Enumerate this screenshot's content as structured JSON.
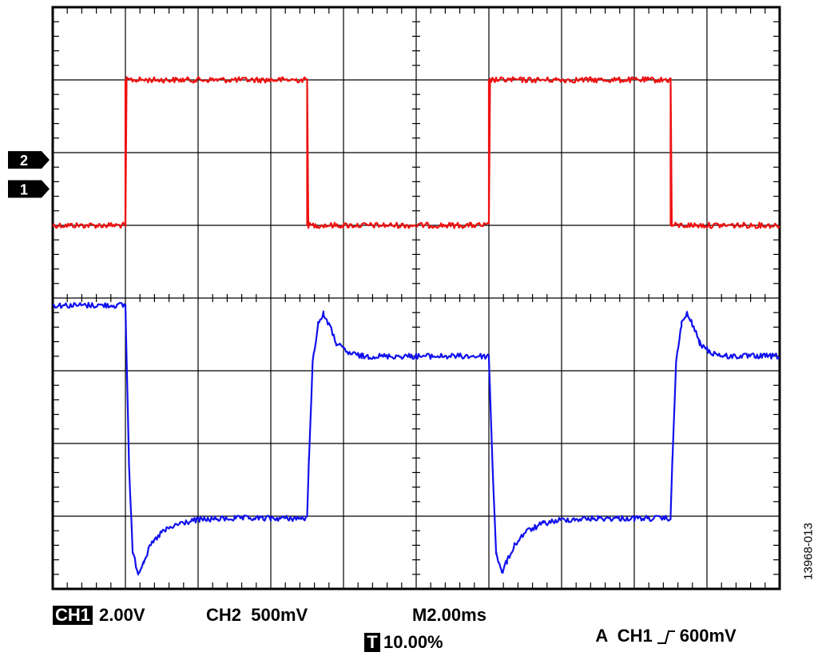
{
  "chart_data": {
    "type": "line",
    "title": "",
    "xlabel": "",
    "ylabel": "",
    "grid": true,
    "x_unit": "ms",
    "y_unit": "divisions",
    "xlim": [
      0,
      20
    ],
    "ylim": [
      -4,
      4
    ],
    "x_divisions": 10,
    "y_divisions": 8,
    "series": [
      {
        "color": "#ee1111",
        "marker_label": "1",
        "marker_level": 1.5,
        "x": [
          0,
          2.0,
          2.0,
          7.0,
          7.0,
          12.0,
          12.0,
          17.0,
          17.0,
          20
        ],
        "y": [
          1.0,
          1.0,
          3.0,
          3.0,
          1.0,
          1.0,
          3.0,
          3.0,
          1.0,
          1.0
        ]
      },
      {
        "color": "#1010ee",
        "marker_label": "2",
        "marker_level": 1.9,
        "x": [
          0,
          2.0,
          2.1,
          2.2,
          2.35,
          2.5,
          2.7,
          3.0,
          3.5,
          4.0,
          5.0,
          6.0,
          7.0,
          7.05,
          7.15,
          7.3,
          7.45,
          7.6,
          7.8,
          8.1,
          8.5,
          10.0,
          12.0,
          12.1,
          12.2,
          12.35,
          12.5,
          12.7,
          13.0,
          13.5,
          14.0,
          15.0,
          16.0,
          17.0,
          17.05,
          17.15,
          17.3,
          17.45,
          17.6,
          17.8,
          18.1,
          18.5,
          20
        ],
        "y": [
          -0.1,
          -0.1,
          -2.3,
          -3.5,
          -3.78,
          -3.62,
          -3.4,
          -3.22,
          -3.1,
          -3.05,
          -3.03,
          -3.03,
          -3.03,
          -2.2,
          -0.9,
          -0.35,
          -0.22,
          -0.36,
          -0.62,
          -0.75,
          -0.8,
          -0.8,
          -0.8,
          -2.3,
          -3.5,
          -3.78,
          -3.62,
          -3.4,
          -3.22,
          -3.1,
          -3.05,
          -3.03,
          -3.03,
          -3.03,
          -2.2,
          -0.9,
          -0.35,
          -0.22,
          -0.36,
          -0.62,
          -0.75,
          -0.8,
          -0.8
        ]
      }
    ]
  },
  "status_bar": {
    "ch1_badge": "CH1",
    "ch1_scale": "2.00V",
    "ch2_scale": "CH2  500mV",
    "timebase": "M2.00ms",
    "trigger_prefix": "A  CH1",
    "trigger_level": "600mV",
    "trigger_badge": "T",
    "trigger_position": "10.00%"
  },
  "figure_id": "13968-013"
}
